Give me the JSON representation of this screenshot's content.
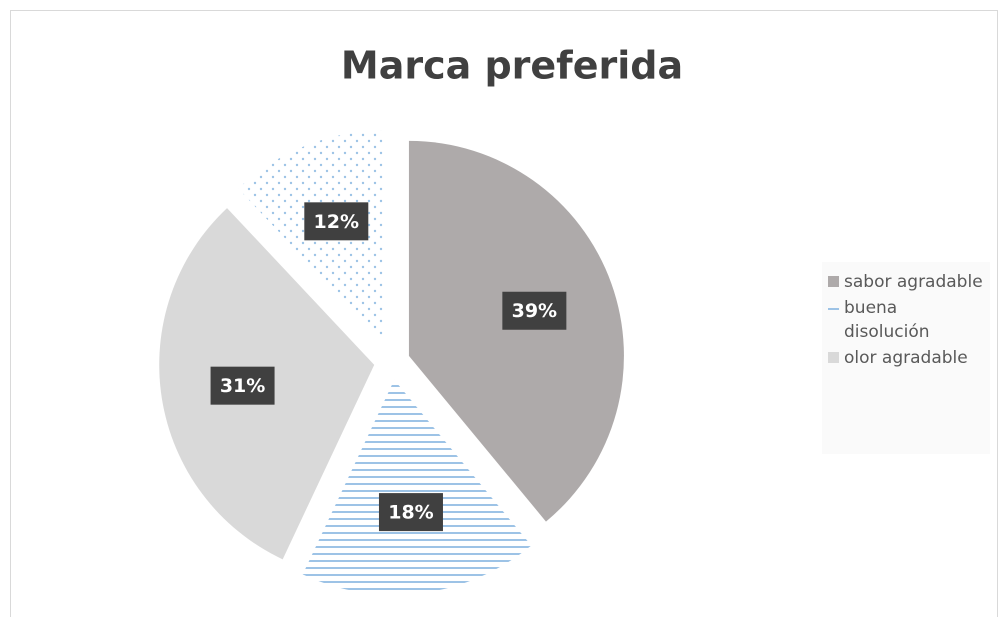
{
  "chart_data": {
    "type": "pie",
    "title": "Marca preferida",
    "categories": [
      "sabor agradable",
      "buena disolución",
      "olor agradable",
      null
    ],
    "values": [
      39,
      18,
      31,
      12
    ],
    "value_labels": [
      "39%",
      "18%",
      "31%",
      "12%"
    ],
    "colors": [
      "#aeaaaa",
      "#9dc3e6",
      "#d9d9d9",
      "#9dc3e6"
    ],
    "legend": "right"
  }
}
